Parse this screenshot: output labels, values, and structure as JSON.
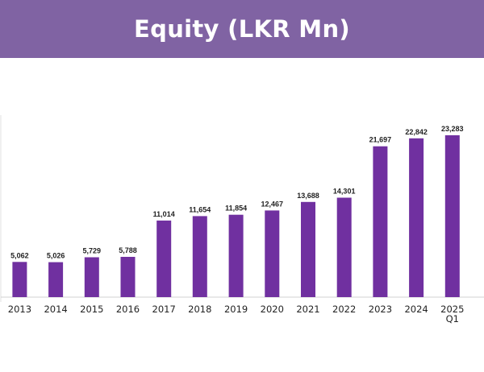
{
  "banner": {
    "title": "Equity (LKR Mn)"
  },
  "colors": {
    "banner_bg": "#8063a3",
    "bar": "#7030a0",
    "axis": "#d0d0d0"
  },
  "chart_data": {
    "type": "bar",
    "title": "Equity (LKR Mn)",
    "xlabel": "",
    "ylabel": "",
    "categories": [
      "2013",
      "2014",
      "2015",
      "2016",
      "2017",
      "2018",
      "2019",
      "2020",
      "2021",
      "2022",
      "2023",
      "2024",
      "2025 Q1"
    ],
    "category_lines": [
      [
        "2013"
      ],
      [
        "2014"
      ],
      [
        "2015"
      ],
      [
        "2016"
      ],
      [
        "2017"
      ],
      [
        "2018"
      ],
      [
        "2019"
      ],
      [
        "2020"
      ],
      [
        "2021"
      ],
      [
        "2022"
      ],
      [
        "2023"
      ],
      [
        "2024"
      ],
      [
        "2025",
        "Q1"
      ]
    ],
    "values": [
      5062,
      5026,
      5729,
      5788,
      11014,
      11654,
      11854,
      12467,
      13688,
      14301,
      21697,
      22842,
      23283
    ],
    "value_labels": [
      "5,062",
      "5,026",
      "5,729",
      "5,788",
      "11,014",
      "11,654",
      "11,854",
      "12,467",
      "13,688",
      "14,301",
      "21,697",
      "22,842",
      "23,283"
    ],
    "ylim": [
      0,
      23283
    ],
    "grid": false,
    "legend": "none"
  }
}
